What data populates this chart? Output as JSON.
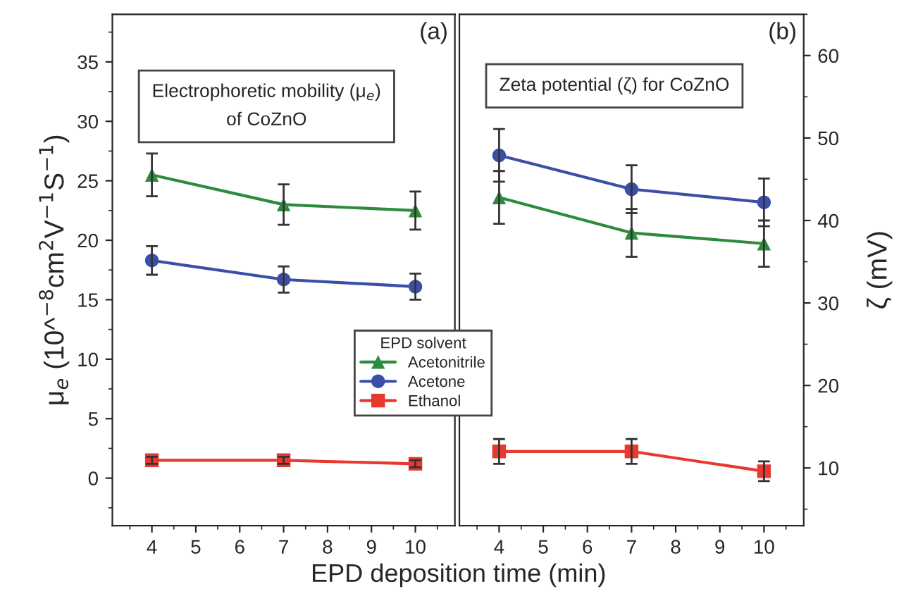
{
  "chart_data": [
    {
      "type": "line",
      "title": "Electrophoretic mobility (μ$_{e}$)\nof CoZnO",
      "xlabel": "EPD deposition time (min)",
      "ylabel": "μ$_{e}$ (10^$^{−8}$cm$^{2}$V$^{−1}$S$^{−1}$)",
      "legend_title": "EPD solvent",
      "legend": "bottom right",
      "annotations": [
        "(a)"
      ],
      "x": [
        4,
        7,
        10
      ],
      "xlim": [
        3.1,
        10.9
      ],
      "xticks": [
        4,
        5,
        6,
        7,
        8,
        9,
        10
      ],
      "ylim": [
        -4,
        39
      ],
      "yticks": [
        0,
        5,
        10,
        15,
        20,
        25,
        30,
        35
      ],
      "grid": false,
      "series": [
        {
          "name": "Acetonitrile",
          "color": "#2e8b3e",
          "marker": "triangle",
          "values": [
            25.5,
            23.0,
            22.5
          ],
          "errors": [
            1.8,
            1.7,
            1.6
          ]
        },
        {
          "name": "Acetone",
          "color": "#3b4fa8",
          "marker": "circle",
          "values": [
            18.3,
            16.7,
            16.1
          ],
          "errors": [
            1.2,
            1.1,
            1.1
          ]
        },
        {
          "name": "Ethanol",
          "color": "#e8392f",
          "marker": "square",
          "values": [
            1.5,
            1.5,
            1.2
          ],
          "errors": [
            0.3,
            0.3,
            0.3
          ]
        }
      ]
    },
    {
      "type": "line",
      "title": "Zeta potential (ζ) for CoZnO",
      "ylabel": "ζ (mV)",
      "annotations": [
        "(b)"
      ],
      "x": [
        4,
        7,
        10
      ],
      "xlim": [
        3.1,
        10.9
      ],
      "xticks": [
        4,
        5,
        6,
        7,
        8,
        9,
        10
      ],
      "ylim": [
        3,
        65
      ],
      "yticks": [
        10,
        20,
        30,
        40,
        50,
        60
      ],
      "grid": false,
      "series": [
        {
          "color": "#2e8b3e",
          "marker": "triangle",
          "values": [
            42.8,
            38.5,
            37.2
          ],
          "errors": [
            3.2,
            2.9,
            2.8
          ]
        },
        {
          "color": "#3b4fa8",
          "marker": "circle",
          "values": [
            47.9,
            43.8,
            42.2
          ],
          "errors": [
            3.2,
            2.9,
            2.9
          ]
        },
        {
          "color": "#e8392f",
          "marker": "square",
          "values": [
            12.0,
            12.0,
            9.6
          ],
          "errors": [
            1.5,
            1.5,
            1.2
          ]
        }
      ]
    }
  ]
}
